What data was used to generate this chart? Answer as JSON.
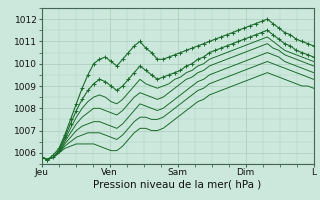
{
  "title": "",
  "xlabel": "Pression niveau de la mer( hPa )",
  "ylabel": "",
  "bg_color": "#cce8dd",
  "grid_color": "#aaccbb",
  "line_color": "#1a6b2a",
  "ylim": [
    1005.5,
    1012.5
  ],
  "xlim": [
    0,
    96
  ],
  "yticks": [
    1006,
    1007,
    1008,
    1009,
    1010,
    1011,
    1012
  ],
  "xticks": [
    0,
    24,
    48,
    72,
    96
  ],
  "xtick_labels": [
    "Jeu",
    "Ven",
    "Sam",
    "Dim",
    "L"
  ],
  "series": [
    [
      1005.8,
      1005.7,
      1005.9,
      1006.2,
      1006.8,
      1007.5,
      1008.2,
      1008.9,
      1009.5,
      1010.0,
      1010.2,
      1010.3,
      1010.1,
      1009.9,
      1010.2,
      1010.5,
      1010.8,
      1011.0,
      1010.7,
      1010.5,
      1010.2,
      1010.2,
      1010.3,
      1010.4,
      1010.5,
      1010.6,
      1010.7,
      1010.8,
      1010.9,
      1011.0,
      1011.1,
      1011.2,
      1011.3,
      1011.4,
      1011.5,
      1011.6,
      1011.7,
      1011.8,
      1011.9,
      1012.0,
      1011.8,
      1011.6,
      1011.4,
      1011.3,
      1011.1,
      1011.0,
      1010.9,
      1010.8
    ],
    [
      1005.8,
      1005.7,
      1005.8,
      1006.1,
      1006.7,
      1007.3,
      1007.9,
      1008.4,
      1008.8,
      1009.1,
      1009.3,
      1009.2,
      1009.0,
      1008.8,
      1009.0,
      1009.3,
      1009.6,
      1009.9,
      1009.7,
      1009.5,
      1009.3,
      1009.4,
      1009.5,
      1009.6,
      1009.7,
      1009.9,
      1010.0,
      1010.2,
      1010.3,
      1010.5,
      1010.6,
      1010.7,
      1010.8,
      1010.9,
      1011.0,
      1011.1,
      1011.2,
      1011.3,
      1011.4,
      1011.5,
      1011.3,
      1011.1,
      1010.9,
      1010.8,
      1010.6,
      1010.5,
      1010.4,
      1010.3
    ],
    [
      1005.8,
      1005.7,
      1005.8,
      1006.1,
      1006.6,
      1007.1,
      1007.6,
      1008.0,
      1008.3,
      1008.5,
      1008.6,
      1008.5,
      1008.3,
      1008.2,
      1008.4,
      1008.7,
      1009.0,
      1009.3,
      1009.1,
      1009.0,
      1008.9,
      1009.0,
      1009.1,
      1009.3,
      1009.4,
      1009.6,
      1009.7,
      1009.9,
      1010.0,
      1010.2,
      1010.3,
      1010.4,
      1010.5,
      1010.6,
      1010.7,
      1010.8,
      1010.9,
      1011.0,
      1011.1,
      1011.2,
      1011.0,
      1010.8,
      1010.6,
      1010.5,
      1010.4,
      1010.3,
      1010.2,
      1010.1
    ],
    [
      1005.8,
      1005.7,
      1005.8,
      1006.0,
      1006.5,
      1006.9,
      1007.3,
      1007.6,
      1007.8,
      1008.0,
      1008.0,
      1007.9,
      1007.8,
      1007.7,
      1007.9,
      1008.2,
      1008.5,
      1008.7,
      1008.6,
      1008.5,
      1008.4,
      1008.5,
      1008.7,
      1008.9,
      1009.1,
      1009.3,
      1009.4,
      1009.6,
      1009.7,
      1009.9,
      1010.0,
      1010.1,
      1010.2,
      1010.3,
      1010.4,
      1010.5,
      1010.6,
      1010.7,
      1010.8,
      1010.9,
      1010.7,
      1010.6,
      1010.4,
      1010.3,
      1010.2,
      1010.1,
      1010.0,
      1009.9
    ],
    [
      1005.8,
      1005.7,
      1005.8,
      1006.0,
      1006.4,
      1006.7,
      1007.0,
      1007.2,
      1007.3,
      1007.4,
      1007.4,
      1007.3,
      1007.2,
      1007.1,
      1007.3,
      1007.6,
      1007.9,
      1008.2,
      1008.1,
      1008.0,
      1007.9,
      1008.0,
      1008.2,
      1008.4,
      1008.6,
      1008.8,
      1009.0,
      1009.2,
      1009.3,
      1009.5,
      1009.6,
      1009.7,
      1009.8,
      1009.9,
      1010.0,
      1010.1,
      1010.2,
      1010.3,
      1010.4,
      1010.5,
      1010.4,
      1010.3,
      1010.1,
      1010.0,
      1009.9,
      1009.8,
      1009.7,
      1009.6
    ],
    [
      1005.8,
      1005.7,
      1005.8,
      1006.0,
      1006.3,
      1006.5,
      1006.7,
      1006.8,
      1006.9,
      1006.9,
      1006.9,
      1006.8,
      1006.7,
      1006.6,
      1006.8,
      1007.1,
      1007.4,
      1007.6,
      1007.6,
      1007.5,
      1007.5,
      1007.6,
      1007.8,
      1008.0,
      1008.2,
      1008.4,
      1008.6,
      1008.8,
      1008.9,
      1009.1,
      1009.2,
      1009.3,
      1009.4,
      1009.5,
      1009.6,
      1009.7,
      1009.8,
      1009.9,
      1010.0,
      1010.1,
      1010.0,
      1009.9,
      1009.8,
      1009.7,
      1009.6,
      1009.5,
      1009.4,
      1009.3
    ],
    [
      1005.8,
      1005.7,
      1005.8,
      1006.0,
      1006.2,
      1006.3,
      1006.4,
      1006.4,
      1006.4,
      1006.4,
      1006.3,
      1006.2,
      1006.1,
      1006.1,
      1006.3,
      1006.6,
      1006.9,
      1007.1,
      1007.1,
      1007.0,
      1007.0,
      1007.1,
      1007.3,
      1007.5,
      1007.7,
      1007.9,
      1008.1,
      1008.3,
      1008.4,
      1008.6,
      1008.7,
      1008.8,
      1008.9,
      1009.0,
      1009.1,
      1009.2,
      1009.3,
      1009.4,
      1009.5,
      1009.6,
      1009.5,
      1009.4,
      1009.3,
      1009.2,
      1009.1,
      1009.0,
      1009.0,
      1008.9
    ]
  ],
  "marker_series": [
    0,
    1
  ],
  "marker_style": "+",
  "marker_size": 2.5
}
